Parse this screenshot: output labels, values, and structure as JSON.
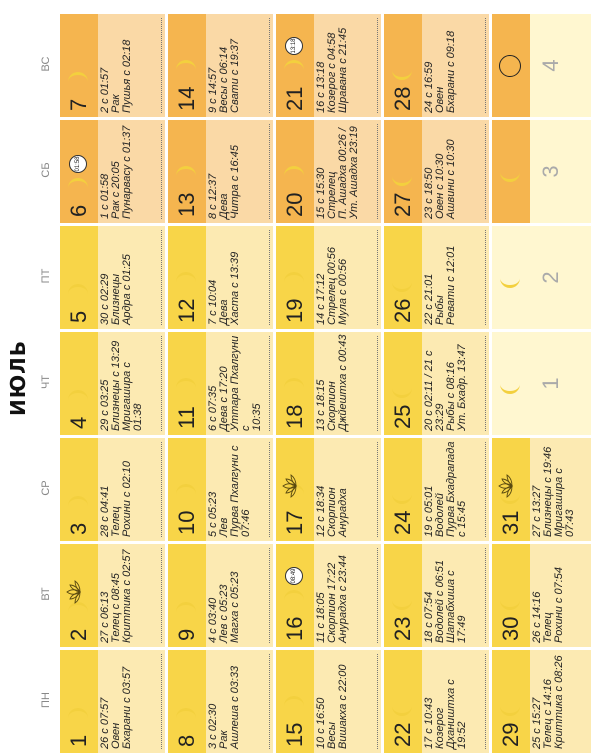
{
  "month_title": "ИЮЛЬ",
  "weekdays": [
    "ПН",
    "ВТ",
    "СР",
    "ЧТ",
    "ПТ",
    "СБ",
    "ВС"
  ],
  "colors": {
    "weekday_cell": "#FCEAB2",
    "weekday_head": "#F8D548",
    "weekend_cell": "#FAD9A6",
    "weekend_head": "#F5B54F",
    "empty_cell": "#FFF7D0",
    "moon": "#F3D03E"
  },
  "weeks": [
    [
      {
        "day": "1",
        "moon": "waxing-crescent",
        "info": "26 с 07:57\nОвен\nБхарани с 03:57"
      },
      {
        "day": "2",
        "moon": "waxing-crescent",
        "lotus": true,
        "info": "27 с 06:13\nТелец с 08:45\nКриттика с 02:57"
      },
      {
        "day": "3",
        "moon": "waxing-crescent",
        "info": "28 с 04:41\nТелец\nРохини с 02:10"
      },
      {
        "day": "4",
        "moon": "waxing-crescent",
        "info": "29 с 03:25\nБлизнецы с 13:29\nМригашира с 01:38"
      },
      {
        "day": "5",
        "moon": "waxing-crescent",
        "info": "30 с 02:29\nБлизнецы\nАрдра с 01:25"
      },
      {
        "day": "6",
        "moon": "waxing-crescent",
        "clock": "01:58",
        "info": "1 с 01:58\nРак с 20:05\nПунарвасу с 01:37"
      },
      {
        "day": "7",
        "moon": "waxing-crescent",
        "info": "2 с 01:57\nРак\nПушья с 02:18"
      }
    ],
    [
      {
        "day": "8",
        "moon": "waxing-crescent",
        "info": "3 с 02:30\nРак\nАшлеша с 03:33"
      },
      {
        "day": "9",
        "moon": "waxing-crescent",
        "info": "4 с 03:40\nЛев с 05:23\nМагха с 05:23"
      },
      {
        "day": "10",
        "moon": "waxing-crescent",
        "info": "5 с 05:23\nЛев\nПурва Пхалгуни с\n07:46"
      },
      {
        "day": "11",
        "moon": "waxing-crescent",
        "info": "6 с 07:35\nДева с 17:20\nУттара Пхалгуни с\n10:35"
      },
      {
        "day": "12",
        "moon": "waxing-crescent",
        "info": "7 с 10:04\nДева\nХаста с 13:39"
      },
      {
        "day": "13",
        "moon": "waxing-crescent",
        "info": "8 с 12:37\nДева\nЧитра с 16:45"
      },
      {
        "day": "14",
        "moon": "waxing-crescent",
        "info": "9 с 14:57\nВесы с 06:14\nСвати с 19:37"
      }
    ],
    [
      {
        "day": "15",
        "moon": "waxing-crescent",
        "info": "10 с 16:50\nВесы\nВишакха с 22:00"
      },
      {
        "day": "16",
        "moon": "waxing-crescent",
        "clock": "08:49",
        "info": "11 с 18:05\nСкорпион 17:22\nАнурадха с 23:44"
      },
      {
        "day": "17",
        "moon": "waxing-crescent",
        "lotus": true,
        "info": "12 с 18:34\nСкорпион\nАнурадха"
      },
      {
        "day": "18",
        "moon": "waxing-crescent",
        "info": "13 с 18:15\nСкорпион\nДжйештха с 00:43"
      },
      {
        "day": "19",
        "moon": "waxing-crescent",
        "info": "14 с 17:12\nСтрелец 00:56\nМула с 00:56"
      },
      {
        "day": "20",
        "moon": "waxing-crescent",
        "info": "15 с 15:30\nСтрелец\nП. Ашадха 00:26 /\nУт. Ашадха 23:19"
      },
      {
        "day": "21",
        "moon": "waxing-crescent",
        "clock": "13:18",
        "info": "16 с 13:18\nКозерог с 04:58\nШравана с 21:45"
      }
    ],
    [
      {
        "day": "22",
        "moon": "waning-crescent",
        "info": "17 с 10:43\nКозерог\nДхаништха с 19:52"
      },
      {
        "day": "23",
        "moon": "waning-crescent",
        "info": "18 с 07:54\nВодолей с 06:51\nШатабхиша с 17:49"
      },
      {
        "day": "24",
        "moon": "waning-crescent",
        "info": "19 с 05:01\nВодолей\nПурва Бхадрапада\nс 15:45"
      },
      {
        "day": "25",
        "moon": "waning-crescent",
        "info": "20 с 02:11 / 21 с\n23:29\nРыбы с 08:16\nУт. Бхадр. 13:47"
      },
      {
        "day": "26",
        "moon": "waning-crescent",
        "info": "22 с 21:01\nРыбы\nРевати с 12:01"
      },
      {
        "day": "27",
        "moon": "waning-crescent",
        "info": "23 с 18:50\nОвен с 10:30\nАшвини с 10:30"
      },
      {
        "day": "28",
        "moon": "waning-crescent",
        "info": "24 с 16:59\nОвен\nБхарани с 09:18"
      }
    ],
    [
      {
        "day": "29",
        "moon": "waning-crescent",
        "info": "25 с 15:27\nТелец с 14:16\nКриттика с 08:26"
      },
      {
        "day": "30",
        "moon": "waning-crescent",
        "info": "26 с 14:16\nТелец\nРохини с 07:54"
      },
      {
        "day": "31",
        "moon": "waning-crescent",
        "lotus": true,
        "info": "27 с 13:27\nБлизнецы с 19:46\nМригашира с 07:43"
      },
      {
        "day": "1",
        "next": true,
        "moon": "waning-crescent"
      },
      {
        "day": "2",
        "next": true,
        "moon": "waning-crescent"
      },
      {
        "day": "3",
        "next": true,
        "moon": "waning-crescent"
      },
      {
        "day": "4",
        "next": true,
        "moon": "new"
      }
    ]
  ]
}
